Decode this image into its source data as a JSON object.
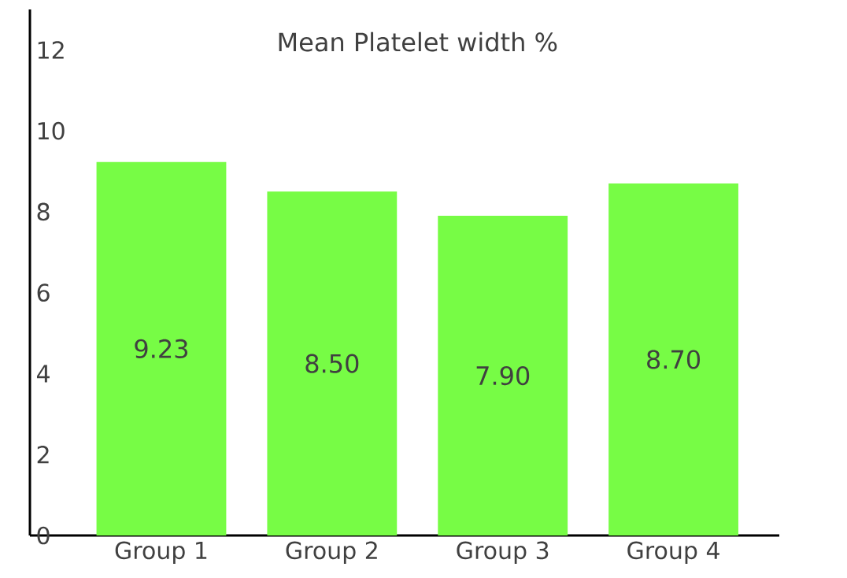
{
  "chart_data": {
    "type": "bar",
    "title": "Mean Platelet  width  %",
    "categories": [
      "Group 1",
      "Group 2",
      "Group 3",
      "Group 4"
    ],
    "values": [
      9.23,
      8.5,
      7.9,
      8.7
    ],
    "value_labels": [
      "9.23",
      "8.50",
      "7.90",
      "8.70"
    ],
    "color": "#77fc45",
    "ylim": [
      0,
      13
    ],
    "yticks": [
      0,
      2,
      4,
      6,
      8,
      10,
      12
    ],
    "grid": false
  }
}
